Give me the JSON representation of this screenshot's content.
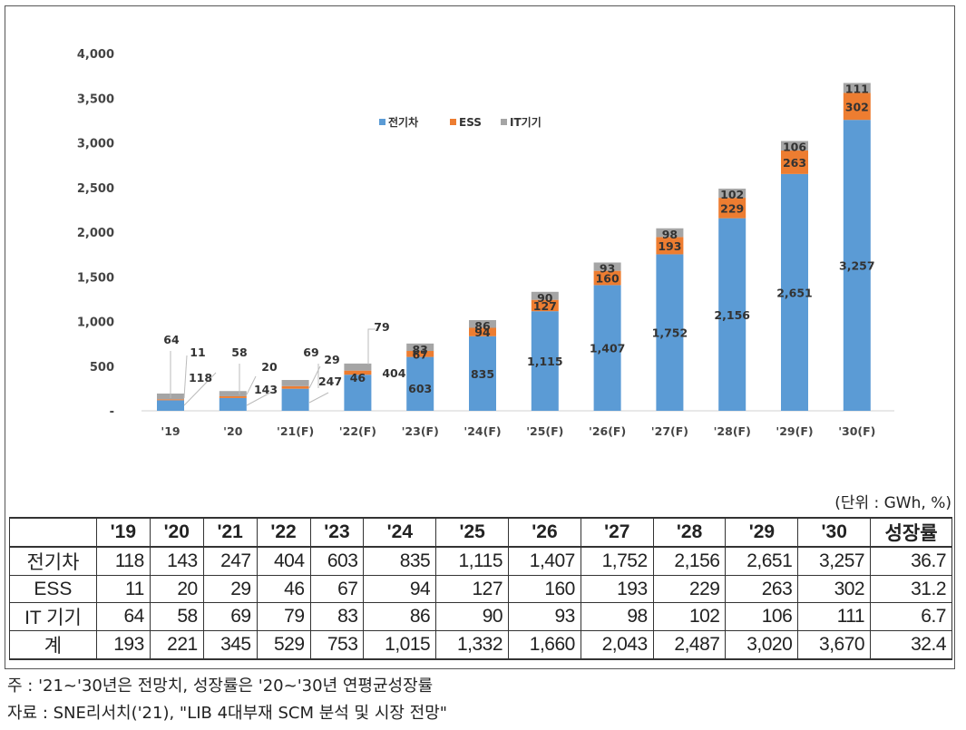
{
  "chart_data": {
    "type": "bar",
    "stacked": true,
    "categories": [
      "'19",
      "'20",
      "'21(F)",
      "'22(F)",
      "'23(F)",
      "'24(F)",
      "'25(F)",
      "'26(F)",
      "'27(F)",
      "'28(F)",
      "'29(F)",
      "'30(F)"
    ],
    "series": [
      {
        "name": "전기차",
        "color": "#5b9bd5",
        "values": [
          118,
          143,
          247,
          404,
          603,
          835,
          1115,
          1407,
          1752,
          2156,
          2651,
          3257
        ]
      },
      {
        "name": "ESS",
        "color": "#ed7d31",
        "values": [
          11,
          20,
          29,
          46,
          67,
          94,
          127,
          160,
          193,
          229,
          263,
          302
        ]
      },
      {
        "name": "IT기기",
        "color": "#a5a5a5",
        "values": [
          64,
          58,
          69,
          79,
          83,
          86,
          90,
          93,
          98,
          102,
          106,
          111
        ]
      }
    ],
    "yticks": [
      "-",
      "500",
      "1,000",
      "1,500",
      "2,000",
      "2,500",
      "3,000",
      "3,500",
      "4,000"
    ],
    "ylim": [
      0,
      4000
    ],
    "legend": "top-center"
  },
  "unit_note": "(단위 : GWh, %)",
  "table": {
    "headers": [
      "",
      "'19",
      "'20",
      "'21",
      "'22",
      "'23",
      "'24",
      "'25",
      "'26",
      "'27",
      "'28",
      "'29",
      "'30",
      "성장률"
    ],
    "rows": [
      [
        "전기차",
        "118",
        "143",
        "247",
        "404",
        "603",
        "835",
        "1,115",
        "1,407",
        "1,752",
        "2,156",
        "2,651",
        "3,257",
        "36.7"
      ],
      [
        "ESS",
        "11",
        "20",
        "29",
        "46",
        "67",
        "94",
        "127",
        "160",
        "193",
        "229",
        "263",
        "302",
        "31.2"
      ],
      [
        "IT 기기",
        "64",
        "58",
        "69",
        "79",
        "83",
        "86",
        "90",
        "93",
        "98",
        "102",
        "106",
        "111",
        "6.7"
      ],
      [
        "계",
        "193",
        "221",
        "345",
        "529",
        "753",
        "1,015",
        "1,332",
        "1,660",
        "2,043",
        "2,487",
        "3,020",
        "3,670",
        "32.4"
      ]
    ]
  },
  "notes": {
    "note1": "주   : '21~'30년은 전망치, 성장률은 '20~'30년 연평균성장률",
    "note2": "자료 : SNE리서치('21), \"LIB 4대부재 SCM 분석 및 시장 전망\""
  }
}
